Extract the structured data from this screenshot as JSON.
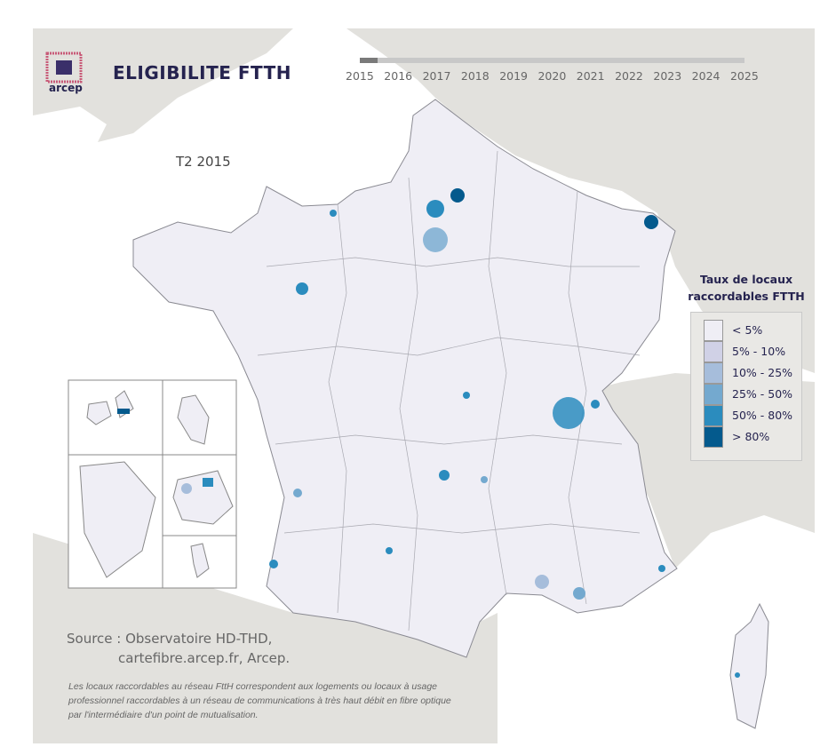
{
  "header": {
    "logo_text": "arcep",
    "title": "ELIGIBILITE FTTH"
  },
  "timeline": {
    "years": [
      "2015",
      "2016",
      "2017",
      "2018",
      "2019",
      "2020",
      "2021",
      "2022",
      "2023",
      "2024",
      "2025"
    ],
    "selected_year": "2015"
  },
  "period_label": "T2 2015",
  "legend": {
    "title_line1": "Taux de locaux",
    "title_line2": "raccordables FTTH",
    "classes": [
      {
        "label": "< 5%",
        "color": "#efeef5"
      },
      {
        "label": "5% - 10%",
        "color": "#d0d1e6"
      },
      {
        "label": "10% - 25%",
        "color": "#a6bddb"
      },
      {
        "label": "25% - 50%",
        "color": "#74a9cf"
      },
      {
        "label": "50% - 80%",
        "color": "#2b8cbe"
      },
      {
        "label": "> 80%",
        "color": "#045a8d"
      }
    ]
  },
  "source": {
    "line1": "Source : Observatoire HD-THD,",
    "line2": "cartefibre.arcep.fr, Arcep."
  },
  "note": "Les locaux raccordables au réseau FttH correspondent aux logements ou locaux à usage professionnel raccordables à un réseau de communications à très haut débit en fibre optique par l'intermédiaire d'un point de mutualisation.",
  "colors": {
    "sea": "#ffffff",
    "land": "#e2e1dd",
    "france": "#efeef5",
    "border": "#8a8a92"
  }
}
